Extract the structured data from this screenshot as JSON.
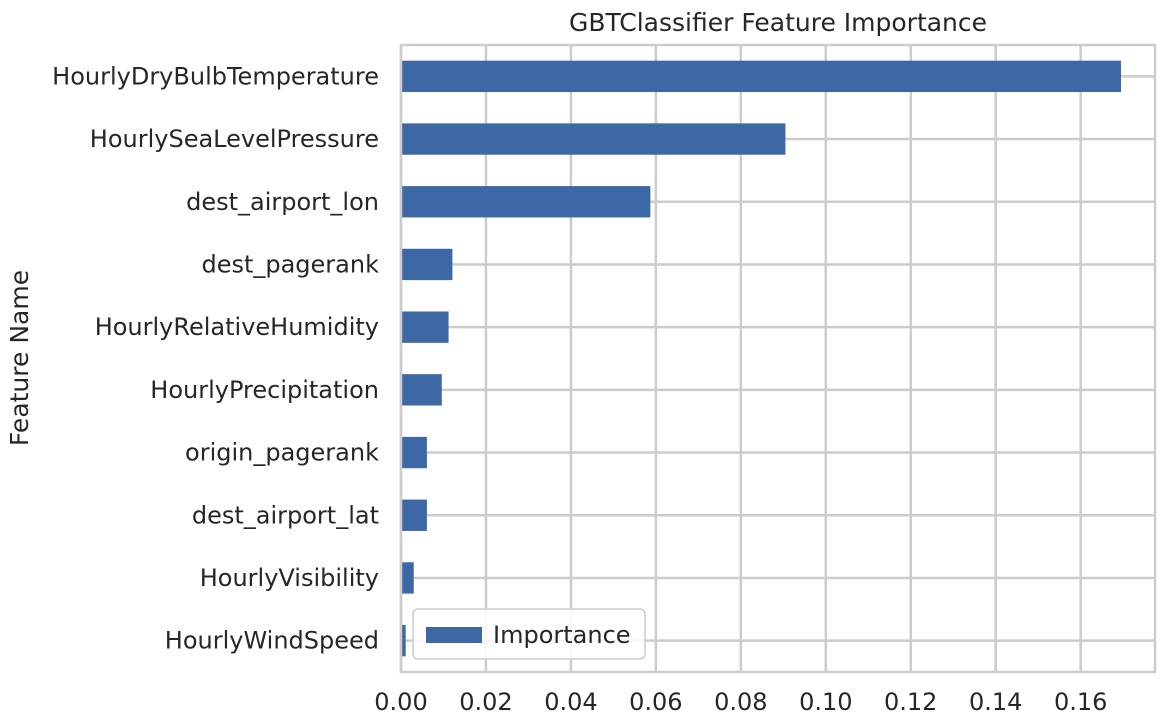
{
  "chart_data": {
    "type": "bar",
    "orientation": "horizontal",
    "title": "GBTClassifier Feature Importance",
    "xlabel": "",
    "ylabel": "Feature Name",
    "categories": [
      "HourlyDryBulbTemperature",
      "HourlySeaLevelPressure",
      "dest_airport_lon",
      "dest_pagerank",
      "HourlyRelativeHumidity",
      "HourlyPrecipitation",
      "origin_pagerank",
      "dest_airport_lat",
      "HourlyVisibility",
      "HourlyWindSpeed"
    ],
    "series": [
      {
        "name": "Importance",
        "color": "#3d67a5",
        "values": [
          0.1695,
          0.0905,
          0.0587,
          0.0121,
          0.0112,
          0.0096,
          0.0061,
          0.0061,
          0.003,
          0.0011
        ]
      }
    ],
    "xlim": [
      0.0,
      0.1775
    ],
    "xticks": [
      0.0,
      0.02,
      0.04,
      0.06,
      0.08,
      0.1,
      0.12,
      0.14,
      0.16
    ],
    "xtick_labels": [
      "0.00",
      "0.02",
      "0.04",
      "0.06",
      "0.08",
      "0.10",
      "0.12",
      "0.14",
      "0.16"
    ],
    "grid": true,
    "legend": {
      "position": "lower-left",
      "entries": [
        "Importance"
      ]
    }
  }
}
